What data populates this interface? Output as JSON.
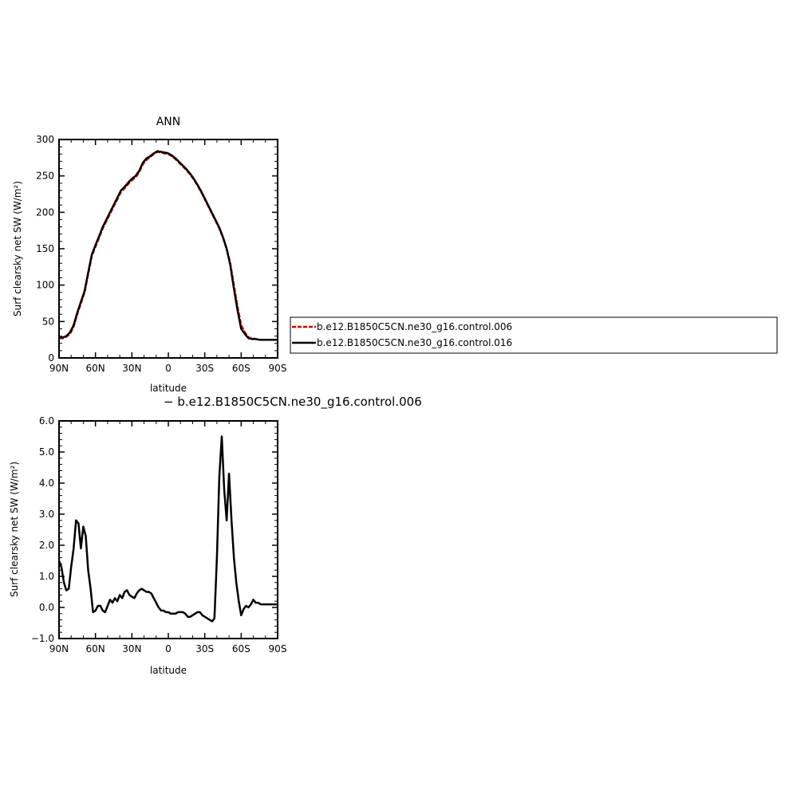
{
  "chart_data": [
    {
      "type": "line",
      "title": "ANN",
      "xlabel": "latitude",
      "ylabel": "Surf clearsky net SW (W/m²)",
      "xlim": [
        90,
        -90
      ],
      "ylim": [
        0,
        300
      ],
      "x_ticks": [
        90,
        60,
        30,
        0,
        -30,
        -60,
        -90
      ],
      "x_tick_labels": [
        "90N",
        "60N",
        "30N",
        "0",
        "30S",
        "60S",
        "90S"
      ],
      "y_ticks": [
        0,
        50,
        100,
        150,
        200,
        250,
        300
      ],
      "y_tick_labels": [
        "0",
        "50",
        "100",
        "150",
        "200",
        "250",
        "300"
      ],
      "grid": false,
      "legend_placement": "right",
      "series": [
        {
          "name": "b.e12.B1850C5CN.ne30_g16.control.006",
          "color": "#e00000",
          "dash": "dashed",
          "x": [
            90,
            87,
            84,
            81,
            78,
            75,
            72,
            69,
            66,
            63,
            60,
            57,
            54,
            51,
            48,
            45,
            42,
            39,
            36,
            33,
            30,
            27,
            24,
            21,
            18,
            15,
            12,
            9,
            6,
            3,
            0,
            -3,
            -6,
            -9,
            -12,
            -15,
            -18,
            -21,
            -24,
            -27,
            -30,
            -33,
            -36,
            -39,
            -42,
            -45,
            -48,
            -51,
            -54,
            -57,
            -60,
            -63,
            -66,
            -69,
            -72,
            -75,
            -78,
            -81,
            -84,
            -87,
            -90
          ],
          "y": [
            27,
            27,
            29,
            33,
            43,
            60,
            75,
            90,
            115,
            140,
            153,
            165,
            178,
            188,
            198,
            208,
            218,
            228,
            233,
            239,
            244,
            248,
            255,
            266,
            272,
            276,
            280,
            283,
            282,
            281,
            280,
            277,
            273,
            268,
            263,
            258,
            252,
            245,
            237,
            228,
            218,
            208,
            198,
            188,
            178,
            165,
            150,
            130,
            100,
            70,
            45,
            35,
            28,
            27,
            26,
            25,
            25,
            25,
            25,
            25,
            25
          ]
        },
        {
          "name": "b.e12.B1850C5CN.ne30_g16.control.016",
          "color": "#000000",
          "dash": "solid",
          "x": [
            90,
            87,
            84,
            81,
            78,
            75,
            72,
            69,
            66,
            63,
            60,
            57,
            54,
            51,
            48,
            45,
            42,
            39,
            36,
            33,
            30,
            27,
            24,
            21,
            18,
            15,
            12,
            9,
            6,
            3,
            0,
            -3,
            -6,
            -9,
            -12,
            -15,
            -18,
            -21,
            -24,
            -27,
            -30,
            -33,
            -36,
            -39,
            -42,
            -45,
            -48,
            -51,
            -54,
            -57,
            -60,
            -63,
            -66,
            -69,
            -72,
            -75,
            -78,
            -81,
            -84,
            -87,
            -90
          ],
          "y": [
            28,
            28,
            30,
            35,
            45,
            62,
            77,
            92,
            117,
            142,
            155,
            167,
            180,
            190,
            200,
            210,
            220,
            230,
            235,
            241,
            246,
            250,
            257,
            268,
            274,
            277,
            281,
            284,
            283,
            282,
            281,
            278,
            274,
            269,
            264,
            259,
            253,
            246,
            238,
            229,
            219,
            209,
            199,
            189,
            179,
            166,
            150,
            128,
            95,
            65,
            40,
            33,
            27,
            26,
            26,
            25,
            25,
            25,
            25,
            25,
            25
          ]
        }
      ]
    },
    {
      "type": "line",
      "title": "",
      "subtitle": "− b.e12.B1850C5CN.ne30_g16.control.006",
      "xlabel": "latitude",
      "ylabel": "Surf clearsky net SW (W/m²)",
      "xlim": [
        90,
        -90
      ],
      "ylim": [
        -1.0,
        6.0
      ],
      "x_ticks": [
        90,
        60,
        30,
        0,
        -30,
        -60,
        -90
      ],
      "x_tick_labels": [
        "90N",
        "60N",
        "30N",
        "0",
        "30S",
        "60S",
        "90S"
      ],
      "y_ticks": [
        -1.0,
        0.0,
        1.0,
        2.0,
        3.0,
        4.0,
        5.0,
        6.0
      ],
      "y_tick_labels": [
        "−1.0",
        "0.0",
        "1.0",
        "2.0",
        "3.0",
        "4.0",
        "5.0",
        "6.0"
      ],
      "grid": false,
      "series": [
        {
          "color": "#000000",
          "dash": "solid",
          "x": [
            90,
            88,
            86,
            84,
            82,
            80,
            78,
            76,
            74,
            72,
            70,
            68,
            66,
            64,
            62,
            60,
            58,
            56,
            54,
            52,
            50,
            48,
            46,
            44,
            42,
            40,
            38,
            36,
            34,
            32,
            30,
            28,
            26,
            24,
            22,
            20,
            18,
            16,
            14,
            12,
            10,
            8,
            6,
            4,
            2,
            0,
            -2,
            -4,
            -6,
            -8,
            -10,
            -12,
            -14,
            -16,
            -18,
            -20,
            -22,
            -24,
            -26,
            -28,
            -30,
            -32,
            -34,
            -36,
            -38,
            -40,
            -42,
            -44,
            -46,
            -48,
            -50,
            -52,
            -54,
            -56,
            -58,
            -60,
            -62,
            -64,
            -66,
            -68,
            -70,
            -72,
            -74,
            -76,
            -78,
            -80,
            -82,
            -84,
            -86,
            -88,
            -90
          ],
          "y": [
            1.5,
            1.3,
            0.8,
            0.55,
            0.6,
            1.3,
            1.9,
            2.8,
            2.7,
            1.9,
            2.6,
            2.3,
            1.2,
            0.6,
            -0.15,
            -0.1,
            0.05,
            0.05,
            -0.1,
            -0.15,
            0.05,
            0.25,
            0.15,
            0.3,
            0.2,
            0.4,
            0.3,
            0.5,
            0.55,
            0.4,
            0.35,
            0.3,
            0.45,
            0.55,
            0.6,
            0.55,
            0.5,
            0.5,
            0.45,
            0.3,
            0.15,
            0.0,
            -0.1,
            -0.1,
            -0.15,
            -0.15,
            -0.2,
            -0.2,
            -0.2,
            -0.15,
            -0.15,
            -0.15,
            -0.2,
            -0.3,
            -0.3,
            -0.25,
            -0.2,
            -0.15,
            -0.15,
            -0.25,
            -0.3,
            -0.35,
            -0.4,
            -0.45,
            -0.35,
            1.6,
            4.2,
            5.5,
            3.8,
            2.8,
            4.3,
            2.8,
            1.6,
            0.8,
            0.2,
            -0.25,
            -0.05,
            0.05,
            0.0,
            0.1,
            0.25,
            0.15,
            0.15,
            0.1,
            0.1,
            0.1,
            0.1,
            0.1,
            0.1,
            0.1,
            0.1
          ]
        }
      ]
    }
  ]
}
